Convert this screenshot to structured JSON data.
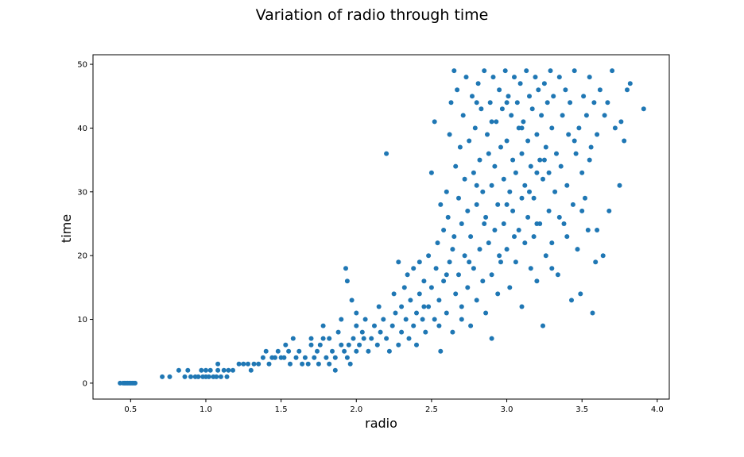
{
  "chart_data": {
    "type": "scatter",
    "title": "Variation of radio through time",
    "xlabel": "radio",
    "ylabel": "time",
    "xlim": [
      0.25,
      4.08
    ],
    "ylim": [
      -2.5,
      51.5
    ],
    "xticks": [
      0.5,
      1.0,
      1.5,
      2.0,
      2.5,
      3.0,
      3.5,
      4.0
    ],
    "xtick_labels": [
      "0.5",
      "1.0",
      "1.5",
      "2.0",
      "2.5",
      "3.0",
      "3.5",
      "4.0"
    ],
    "yticks": [
      0,
      10,
      20,
      30,
      40,
      50
    ],
    "ytick_labels": [
      "0",
      "10",
      "20",
      "30",
      "40",
      "50"
    ],
    "grid": false,
    "color": "#1f77b4",
    "points": [
      [
        0.43,
        0
      ],
      [
        0.45,
        0
      ],
      [
        0.46,
        0
      ],
      [
        0.47,
        0
      ],
      [
        0.48,
        0
      ],
      [
        0.49,
        0
      ],
      [
        0.5,
        0
      ],
      [
        0.51,
        0
      ],
      [
        0.52,
        0
      ],
      [
        0.53,
        0
      ],
      [
        0.71,
        1
      ],
      [
        0.76,
        1
      ],
      [
        0.82,
        2
      ],
      [
        0.86,
        1
      ],
      [
        0.88,
        2
      ],
      [
        0.9,
        1
      ],
      [
        0.93,
        1
      ],
      [
        0.95,
        1
      ],
      [
        0.97,
        2
      ],
      [
        0.98,
        1
      ],
      [
        1.0,
        1
      ],
      [
        1.0,
        2
      ],
      [
        1.02,
        1
      ],
      [
        1.03,
        2
      ],
      [
        1.05,
        1
      ],
      [
        1.07,
        1
      ],
      [
        1.08,
        2
      ],
      [
        1.08,
        3
      ],
      [
        1.1,
        1
      ],
      [
        1.12,
        2
      ],
      [
        1.14,
        1
      ],
      [
        1.15,
        2
      ],
      [
        1.18,
        2
      ],
      [
        1.22,
        3
      ],
      [
        1.25,
        3
      ],
      [
        1.28,
        3
      ],
      [
        1.3,
        2
      ],
      [
        1.32,
        3
      ],
      [
        1.35,
        3
      ],
      [
        1.38,
        4
      ],
      [
        1.4,
        5
      ],
      [
        1.42,
        3
      ],
      [
        1.44,
        4
      ],
      [
        1.46,
        4
      ],
      [
        1.48,
        5
      ],
      [
        1.5,
        4
      ],
      [
        1.52,
        4
      ],
      [
        1.53,
        6
      ],
      [
        1.55,
        5
      ],
      [
        1.56,
        3
      ],
      [
        1.58,
        7
      ],
      [
        1.6,
        4
      ],
      [
        1.62,
        5
      ],
      [
        1.64,
        3
      ],
      [
        1.66,
        4
      ],
      [
        1.68,
        3
      ],
      [
        1.7,
        6
      ],
      [
        1.7,
        7
      ],
      [
        1.72,
        4
      ],
      [
        1.74,
        5
      ],
      [
        1.75,
        3
      ],
      [
        1.76,
        6
      ],
      [
        1.78,
        9
      ],
      [
        1.78,
        7
      ],
      [
        1.8,
        4
      ],
      [
        1.82,
        3
      ],
      [
        1.82,
        7
      ],
      [
        1.84,
        5
      ],
      [
        1.86,
        4
      ],
      [
        1.86,
        2
      ],
      [
        1.88,
        8
      ],
      [
        1.9,
        6
      ],
      [
        1.9,
        10
      ],
      [
        1.92,
        5
      ],
      [
        1.93,
        18
      ],
      [
        1.94,
        16
      ],
      [
        1.94,
        4
      ],
      [
        1.95,
        6
      ],
      [
        1.96,
        3
      ],
      [
        1.97,
        13
      ],
      [
        1.98,
        7
      ],
      [
        2.0,
        5
      ],
      [
        2.0,
        11
      ],
      [
        2.0,
        9
      ],
      [
        2.02,
        6
      ],
      [
        2.04,
        8
      ],
      [
        2.05,
        7
      ],
      [
        2.06,
        10
      ],
      [
        2.08,
        5
      ],
      [
        2.1,
        7
      ],
      [
        2.12,
        9
      ],
      [
        2.14,
        6
      ],
      [
        2.15,
        12
      ],
      [
        2.16,
        8
      ],
      [
        2.18,
        10
      ],
      [
        2.2,
        7
      ],
      [
        2.2,
        36
      ],
      [
        2.22,
        5
      ],
      [
        2.24,
        9
      ],
      [
        2.25,
        14
      ],
      [
        2.26,
        11
      ],
      [
        2.28,
        19
      ],
      [
        2.28,
        6
      ],
      [
        2.3,
        12
      ],
      [
        2.3,
        8
      ],
      [
        2.32,
        15
      ],
      [
        2.33,
        10
      ],
      [
        2.34,
        17
      ],
      [
        2.35,
        7
      ],
      [
        2.36,
        13
      ],
      [
        2.38,
        9
      ],
      [
        2.38,
        18
      ],
      [
        2.4,
        11
      ],
      [
        2.4,
        6
      ],
      [
        2.42,
        14
      ],
      [
        2.42,
        19
      ],
      [
        2.44,
        10
      ],
      [
        2.45,
        16
      ],
      [
        2.46,
        8
      ],
      [
        2.48,
        12
      ],
      [
        2.48,
        20
      ],
      [
        2.5,
        15
      ],
      [
        2.5,
        33
      ],
      [
        2.52,
        41
      ],
      [
        2.52,
        10
      ],
      [
        2.53,
        18
      ],
      [
        2.54,
        22
      ],
      [
        2.55,
        13
      ],
      [
        2.56,
        28
      ],
      [
        2.56,
        5
      ],
      [
        2.58,
        24
      ],
      [
        2.58,
        16
      ],
      [
        2.6,
        30
      ],
      [
        2.6,
        11
      ],
      [
        2.61,
        26
      ],
      [
        2.62,
        39
      ],
      [
        2.62,
        19
      ],
      [
        2.63,
        44
      ],
      [
        2.64,
        21
      ],
      [
        2.64,
        8
      ],
      [
        2.65,
        49
      ],
      [
        2.66,
        34
      ],
      [
        2.66,
        14
      ],
      [
        2.67,
        46
      ],
      [
        2.68,
        29
      ],
      [
        2.68,
        17
      ],
      [
        2.69,
        37
      ],
      [
        2.7,
        25
      ],
      [
        2.7,
        12
      ],
      [
        2.71,
        42
      ],
      [
        2.72,
        32
      ],
      [
        2.72,
        20
      ],
      [
        2.73,
        48
      ],
      [
        2.74,
        27
      ],
      [
        2.74,
        15
      ],
      [
        2.75,
        38
      ],
      [
        2.76,
        23
      ],
      [
        2.76,
        9
      ],
      [
        2.77,
        45
      ],
      [
        2.78,
        33
      ],
      [
        2.78,
        18
      ],
      [
        2.79,
        40
      ],
      [
        2.8,
        28
      ],
      [
        2.8,
        13
      ],
      [
        2.81,
        47
      ],
      [
        2.82,
        35
      ],
      [
        2.82,
        21
      ],
      [
        2.83,
        43
      ],
      [
        2.84,
        30
      ],
      [
        2.84,
        16
      ],
      [
        2.85,
        49
      ],
      [
        2.86,
        26
      ],
      [
        2.86,
        11
      ],
      [
        2.87,
        39
      ],
      [
        2.88,
        36
      ],
      [
        2.88,
        22
      ],
      [
        2.89,
        44
      ],
      [
        2.9,
        31
      ],
      [
        2.9,
        17
      ],
      [
        2.91,
        48
      ],
      [
        2.92,
        34
      ],
      [
        2.92,
        24
      ],
      [
        2.93,
        41
      ],
      [
        2.94,
        28
      ],
      [
        2.94,
        14
      ],
      [
        2.95,
        46
      ],
      [
        2.96,
        37
      ],
      [
        2.96,
        19
      ],
      [
        2.97,
        43
      ],
      [
        2.98,
        32
      ],
      [
        2.98,
        25
      ],
      [
        2.99,
        49
      ],
      [
        3.0,
        38
      ],
      [
        3.0,
        21
      ],
      [
        3.01,
        45
      ],
      [
        3.02,
        30
      ],
      [
        3.02,
        15
      ],
      [
        3.03,
        42
      ],
      [
        3.04,
        35
      ],
      [
        3.04,
        27
      ],
      [
        3.05,
        48
      ],
      [
        3.06,
        33
      ],
      [
        3.06,
        19
      ],
      [
        3.07,
        44
      ],
      [
        3.08,
        40
      ],
      [
        3.08,
        24
      ],
      [
        3.09,
        47
      ],
      [
        3.1,
        36
      ],
      [
        3.1,
        12
      ],
      [
        3.11,
        41
      ],
      [
        3.12,
        31
      ],
      [
        3.12,
        22
      ],
      [
        3.13,
        49
      ],
      [
        3.14,
        38
      ],
      [
        3.14,
        26
      ],
      [
        3.15,
        45
      ],
      [
        3.16,
        34
      ],
      [
        3.16,
        18
      ],
      [
        3.17,
        43
      ],
      [
        3.18,
        29
      ],
      [
        3.18,
        23
      ],
      [
        3.19,
        48
      ],
      [
        3.2,
        39
      ],
      [
        3.2,
        16
      ],
      [
        3.21,
        46
      ],
      [
        3.22,
        35
      ],
      [
        3.22,
        25
      ],
      [
        3.23,
        42
      ],
      [
        3.24,
        32
      ],
      [
        3.24,
        9
      ],
      [
        3.25,
        47
      ],
      [
        3.26,
        37
      ],
      [
        3.26,
        20
      ],
      [
        3.27,
        44
      ],
      [
        3.28,
        33
      ],
      [
        3.28,
        27
      ],
      [
        3.29,
        49
      ],
      [
        3.3,
        40
      ],
      [
        3.3,
        22
      ],
      [
        3.31,
        45
      ],
      [
        3.32,
        30
      ],
      [
        3.33,
        36
      ],
      [
        3.34,
        17
      ],
      [
        3.35,
        48
      ],
      [
        3.36,
        34
      ],
      [
        3.37,
        42
      ],
      [
        3.38,
        25
      ],
      [
        3.39,
        46
      ],
      [
        3.4,
        31
      ],
      [
        3.41,
        39
      ],
      [
        3.42,
        44
      ],
      [
        3.43,
        13
      ],
      [
        3.44,
        28
      ],
      [
        3.45,
        49
      ],
      [
        3.46,
        36
      ],
      [
        3.47,
        21
      ],
      [
        3.48,
        40
      ],
      [
        3.49,
        14
      ],
      [
        3.5,
        33
      ],
      [
        3.51,
        45
      ],
      [
        3.52,
        29
      ],
      [
        3.53,
        42
      ],
      [
        3.54,
        24
      ],
      [
        3.55,
        48
      ],
      [
        3.56,
        37
      ],
      [
        3.57,
        11
      ],
      [
        3.58,
        44
      ],
      [
        3.59,
        19
      ],
      [
        3.6,
        39
      ],
      [
        3.62,
        46
      ],
      [
        3.64,
        20
      ],
      [
        3.65,
        42
      ],
      [
        3.67,
        44
      ],
      [
        3.68,
        27
      ],
      [
        3.7,
        49
      ],
      [
        3.72,
        40
      ],
      [
        3.75,
        31
      ],
      [
        3.76,
        41
      ],
      [
        3.78,
        38
      ],
      [
        3.8,
        46
      ],
      [
        3.82,
        47
      ],
      [
        3.91,
        43
      ],
      [
        2.45,
        12
      ],
      [
        2.55,
        9
      ],
      [
        2.6,
        17
      ],
      [
        2.65,
        23
      ],
      [
        2.7,
        10
      ],
      [
        2.75,
        19
      ],
      [
        2.8,
        31
      ],
      [
        2.85,
        25
      ],
      [
        2.9,
        7
      ],
      [
        2.95,
        20
      ],
      [
        3.0,
        28
      ],
      [
        3.05,
        23
      ],
      [
        3.1,
        29
      ],
      [
        3.15,
        30
      ],
      [
        3.2,
        25
      ],
      [
        3.25,
        35
      ],
      [
        3.3,
        18
      ],
      [
        3.35,
        26
      ],
      [
        3.4,
        23
      ],
      [
        3.45,
        38
      ],
      [
        3.5,
        27
      ],
      [
        3.55,
        35
      ],
      [
        3.6,
        24
      ],
      [
        3.2,
        33
      ],
      [
        3.1,
        40
      ],
      [
        3.0,
        44
      ],
      [
        2.9,
        41
      ],
      [
        2.8,
        44
      ]
    ]
  }
}
